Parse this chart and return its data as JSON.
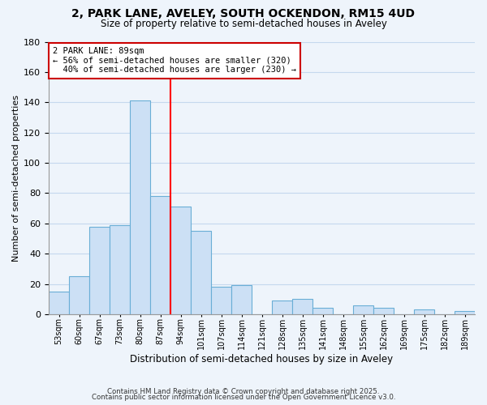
{
  "title": "2, PARK LANE, AVELEY, SOUTH OCKENDON, RM15 4UD",
  "subtitle": "Size of property relative to semi-detached houses in Aveley",
  "xlabel": "Distribution of semi-detached houses by size in Aveley",
  "ylabel": "Number of semi-detached properties",
  "bin_labels": [
    "53sqm",
    "60sqm",
    "67sqm",
    "73sqm",
    "80sqm",
    "87sqm",
    "94sqm",
    "101sqm",
    "107sqm",
    "114sqm",
    "121sqm",
    "128sqm",
    "135sqm",
    "141sqm",
    "148sqm",
    "155sqm",
    "162sqm",
    "169sqm",
    "175sqm",
    "182sqm",
    "189sqm"
  ],
  "bar_values": [
    15,
    25,
    58,
    59,
    141,
    78,
    71,
    55,
    18,
    19,
    0,
    9,
    10,
    4,
    0,
    6,
    4,
    0,
    3,
    0,
    2
  ],
  "bar_color": "#cce0f5",
  "bar_edge_color": "#6aaed6",
  "vline_x": 6,
  "vline_color": "red",
  "annotation_title": "2 PARK LANE: 89sqm",
  "annotation_line1": "← 56% of semi-detached houses are smaller (320)",
  "annotation_line2": "  40% of semi-detached houses are larger (230) →",
  "annotation_box_color": "white",
  "annotation_box_edge": "#cc0000",
  "ylim": [
    0,
    180
  ],
  "yticks": [
    0,
    20,
    40,
    60,
    80,
    100,
    120,
    140,
    160,
    180
  ],
  "footer1": "Contains HM Land Registry data © Crown copyright and database right 2025.",
  "footer2": "Contains public sector information licensed under the Open Government Licence v3.0.",
  "bg_color": "#eef4fb",
  "grid_color": "#c5d8ee"
}
